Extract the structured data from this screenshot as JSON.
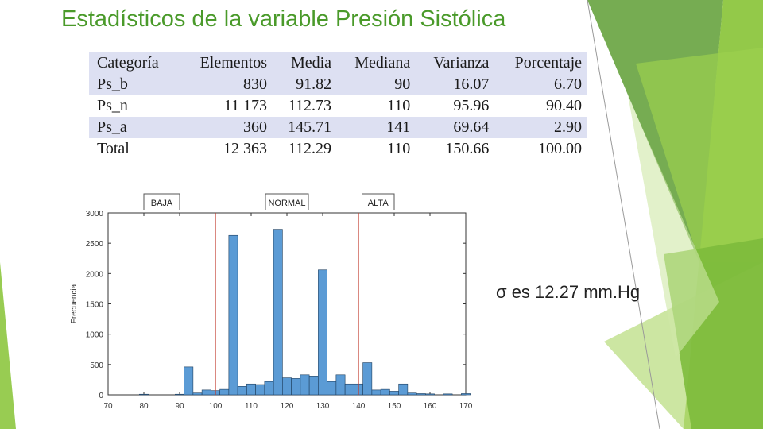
{
  "slide": {
    "title": "Estadísticos de la variable Presión Sistólica",
    "sigma_note": "σ es 12.27 mm.Hg",
    "accent_color": "#8dc63f"
  },
  "table": {
    "headers": [
      "Categoría",
      "Elementos",
      "Media",
      "Mediana",
      "Varianza",
      "Porcentaje"
    ],
    "rows": [
      [
        "Ps_b",
        "830",
        "91.82",
        "90",
        "16.07",
        "6.70"
      ],
      [
        "Ps_n",
        "11 173",
        "112.73",
        "110",
        "95.96",
        "90.40"
      ],
      [
        "Ps_a",
        "360",
        "145.71",
        "141",
        "69.64",
        "2.90"
      ],
      [
        "Total",
        "12 363",
        "112.29",
        "110",
        "150.66",
        "100.00"
      ]
    ]
  },
  "chart_data": {
    "type": "bar",
    "title": "",
    "xlabel": "",
    "ylabel": "Frecuencia",
    "xlim": [
      70,
      170
    ],
    "ylim": [
      0,
      3000
    ],
    "x_ticks": [
      70,
      80,
      90,
      100,
      110,
      120,
      130,
      140,
      150,
      160,
      170
    ],
    "y_ticks": [
      0,
      500,
      1000,
      1500,
      2000,
      2500,
      3000
    ],
    "bin_width": 2.5,
    "bar_color": "#5b9bd5",
    "bins": [
      {
        "x": 80,
        "y": 10
      },
      {
        "x": 90,
        "y": 10
      },
      {
        "x": 92.5,
        "y": 460
      },
      {
        "x": 95,
        "y": 30
      },
      {
        "x": 97.5,
        "y": 80
      },
      {
        "x": 100,
        "y": 70
      },
      {
        "x": 102.5,
        "y": 90
      },
      {
        "x": 105,
        "y": 2630
      },
      {
        "x": 107.5,
        "y": 140
      },
      {
        "x": 110,
        "y": 180
      },
      {
        "x": 112.5,
        "y": 170
      },
      {
        "x": 115,
        "y": 220
      },
      {
        "x": 117.5,
        "y": 2730
      },
      {
        "x": 120,
        "y": 280
      },
      {
        "x": 122.5,
        "y": 270
      },
      {
        "x": 125,
        "y": 330
      },
      {
        "x": 127.5,
        "y": 310
      },
      {
        "x": 130,
        "y": 2060
      },
      {
        "x": 132.5,
        "y": 220
      },
      {
        "x": 135,
        "y": 330
      },
      {
        "x": 137.5,
        "y": 180
      },
      {
        "x": 140,
        "y": 180
      },
      {
        "x": 142.5,
        "y": 530
      },
      {
        "x": 145,
        "y": 80
      },
      {
        "x": 147.5,
        "y": 90
      },
      {
        "x": 150,
        "y": 60
      },
      {
        "x": 152.5,
        "y": 180
      },
      {
        "x": 155,
        "y": 30
      },
      {
        "x": 157.5,
        "y": 20
      },
      {
        "x": 160,
        "y": 15
      },
      {
        "x": 165,
        "y": 15
      },
      {
        "x": 170,
        "y": 20
      }
    ],
    "thresholds": [
      {
        "x": 100,
        "color": "#c0392b"
      },
      {
        "x": 140,
        "color": "#c0392b"
      }
    ],
    "region_labels": [
      {
        "label": "BAJA",
        "x_from": 80,
        "x_to": 90
      },
      {
        "label": "NORMAL",
        "x_from": 114,
        "x_to": 126
      },
      {
        "label": "ALTA",
        "x_from": 141,
        "x_to": 150
      }
    ]
  }
}
